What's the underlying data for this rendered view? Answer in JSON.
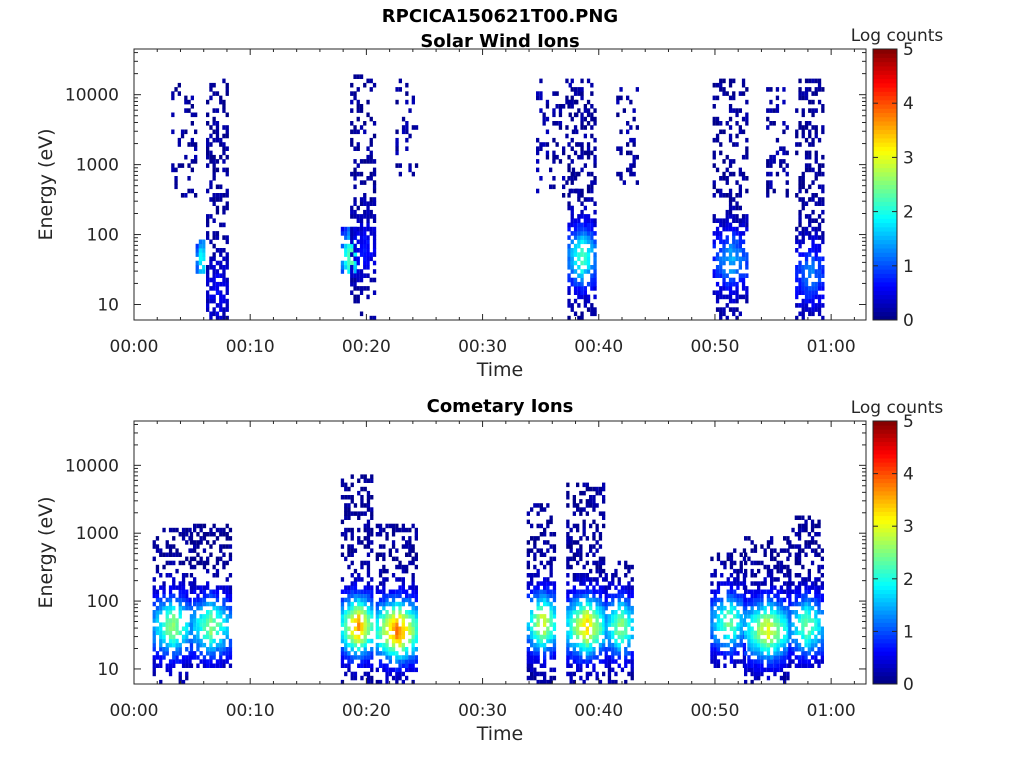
{
  "figure": {
    "title": "RPCICA150621T00.PNG"
  },
  "colormap": "jet",
  "chart_data": [
    {
      "type": "heatmap",
      "title": "Solar Wind Ions",
      "xlabel": "Time",
      "ylabel": "Energy (eV)",
      "x_ticks": [
        "00:00",
        "00:10",
        "00:20",
        "00:30",
        "00:40",
        "00:50",
        "01:00"
      ],
      "x_tick_minutes": [
        0,
        10,
        20,
        30,
        40,
        50,
        60
      ],
      "xlim_minutes": [
        0,
        63
      ],
      "y_scale": "log",
      "y_ticks": [
        "10",
        "100",
        "1000",
        "10000"
      ],
      "y_tick_values": [
        10,
        100,
        1000,
        10000
      ],
      "ylim": [
        6,
        45000
      ],
      "colorbar": {
        "label": "Log counts",
        "ticks": [
          "0",
          "1",
          "2",
          "3",
          "4",
          "5"
        ],
        "range": [
          0,
          5
        ]
      },
      "bursts": [
        {
          "t_start": 3.2,
          "t_end": 5.2,
          "e_min": 300,
          "e_max": 14000,
          "peak_energy": null,
          "peak_level": 0.3,
          "density": 0.25
        },
        {
          "t_start": 5.3,
          "t_end": 6.1,
          "e_min": 25,
          "e_max": 80,
          "peak_energy": 40,
          "peak_level": 2.0,
          "density": 0.8
        },
        {
          "t_start": 6.2,
          "t_end": 8.0,
          "e_min": 6,
          "e_max": 15000,
          "peak_energy": 15,
          "peak_level": 0.5,
          "density": 0.65
        },
        {
          "t_start": 17.8,
          "t_end": 19.2,
          "e_min": 25,
          "e_max": 120,
          "peak_energy": 45,
          "peak_level": 2.4,
          "density": 0.75
        },
        {
          "t_start": 18.6,
          "t_end": 20.8,
          "e_min": 6,
          "e_max": 18000,
          "peak_energy": 60,
          "peak_level": 0.6,
          "density": 0.6
        },
        {
          "t_start": 22.5,
          "t_end": 24.3,
          "e_min": 600,
          "e_max": 15000,
          "peak_energy": null,
          "peak_level": 0.3,
          "density": 0.25
        },
        {
          "t_start": 34.6,
          "t_end": 38.2,
          "e_min": 300,
          "e_max": 16000,
          "peak_energy": null,
          "peak_level": 0.3,
          "density": 0.2
        },
        {
          "t_start": 37.3,
          "t_end": 39.6,
          "e_min": 6,
          "e_max": 15000,
          "peak_energy": 45,
          "peak_level": 2.2,
          "density": 0.7
        },
        {
          "t_start": 41.5,
          "t_end": 43.2,
          "e_min": 500,
          "e_max": 12000,
          "peak_energy": null,
          "peak_level": 0.3,
          "density": 0.25
        },
        {
          "t_start": 49.8,
          "t_end": 52.8,
          "e_min": 6,
          "e_max": 15000,
          "peak_energy": 40,
          "peak_level": 1.4,
          "density": 0.6
        },
        {
          "t_start": 54.4,
          "t_end": 56.2,
          "e_min": 300,
          "e_max": 12000,
          "peak_energy": null,
          "peak_level": 0.3,
          "density": 0.25
        },
        {
          "t_start": 56.9,
          "t_end": 59.3,
          "e_min": 6,
          "e_max": 15000,
          "peak_energy": 25,
          "peak_level": 1.2,
          "density": 0.65
        }
      ]
    },
    {
      "type": "heatmap",
      "title": "Cometary Ions",
      "xlabel": "Time",
      "ylabel": "Energy (eV)",
      "x_ticks": [
        "00:00",
        "00:10",
        "00:20",
        "00:30",
        "00:40",
        "00:50",
        "01:00"
      ],
      "x_tick_minutes": [
        0,
        10,
        20,
        30,
        40,
        50,
        60
      ],
      "xlim_minutes": [
        0,
        63
      ],
      "y_scale": "log",
      "y_ticks": [
        "10",
        "100",
        "1000",
        "10000"
      ],
      "y_tick_values": [
        10,
        100,
        1000,
        10000
      ],
      "ylim": [
        6,
        45000
      ],
      "colorbar": {
        "label": "Log counts",
        "ticks": [
          "0",
          "1",
          "2",
          "3",
          "4",
          "5"
        ],
        "range": [
          0,
          5
        ]
      },
      "bursts": [
        {
          "t_start": 1.6,
          "t_end": 4.8,
          "e_min": 6,
          "e_max": 1100,
          "peak_energy": 40,
          "peak_level": 2.6,
          "density": 0.7
        },
        {
          "t_start": 4.8,
          "t_end": 8.2,
          "e_min": 10,
          "e_max": 1200,
          "peak_energy": 40,
          "peak_level": 2.5,
          "density": 0.7
        },
        {
          "t_start": 17.8,
          "t_end": 20.5,
          "e_min": 6,
          "e_max": 6500,
          "peak_energy": 40,
          "peak_level": 3.6,
          "density": 0.75
        },
        {
          "t_start": 20.8,
          "t_end": 24.3,
          "e_min": 6,
          "e_max": 1200,
          "peak_energy": 35,
          "peak_level": 3.8,
          "density": 0.75
        },
        {
          "t_start": 33.8,
          "t_end": 36.3,
          "e_min": 6,
          "e_max": 2600,
          "peak_energy": 45,
          "peak_level": 3.0,
          "density": 0.7
        },
        {
          "t_start": 37.2,
          "t_end": 40.4,
          "e_min": 6,
          "e_max": 5500,
          "peak_energy": 40,
          "peak_level": 3.3,
          "density": 0.75
        },
        {
          "t_start": 40.5,
          "t_end": 43.0,
          "e_min": 6,
          "e_max": 350,
          "peak_energy": 40,
          "peak_level": 2.6,
          "density": 0.7
        },
        {
          "t_start": 49.6,
          "t_end": 52.5,
          "e_min": 10,
          "e_max": 550,
          "peak_energy": 45,
          "peak_level": 2.4,
          "density": 0.7
        },
        {
          "t_start": 52.5,
          "t_end": 56.3,
          "e_min": 6,
          "e_max": 800,
          "peak_energy": 35,
          "peak_level": 3.0,
          "density": 0.75
        },
        {
          "t_start": 56.3,
          "t_end": 59.3,
          "e_min": 10,
          "e_max": 1600,
          "peak_energy": 40,
          "peak_level": 2.4,
          "density": 0.7
        }
      ]
    }
  ]
}
